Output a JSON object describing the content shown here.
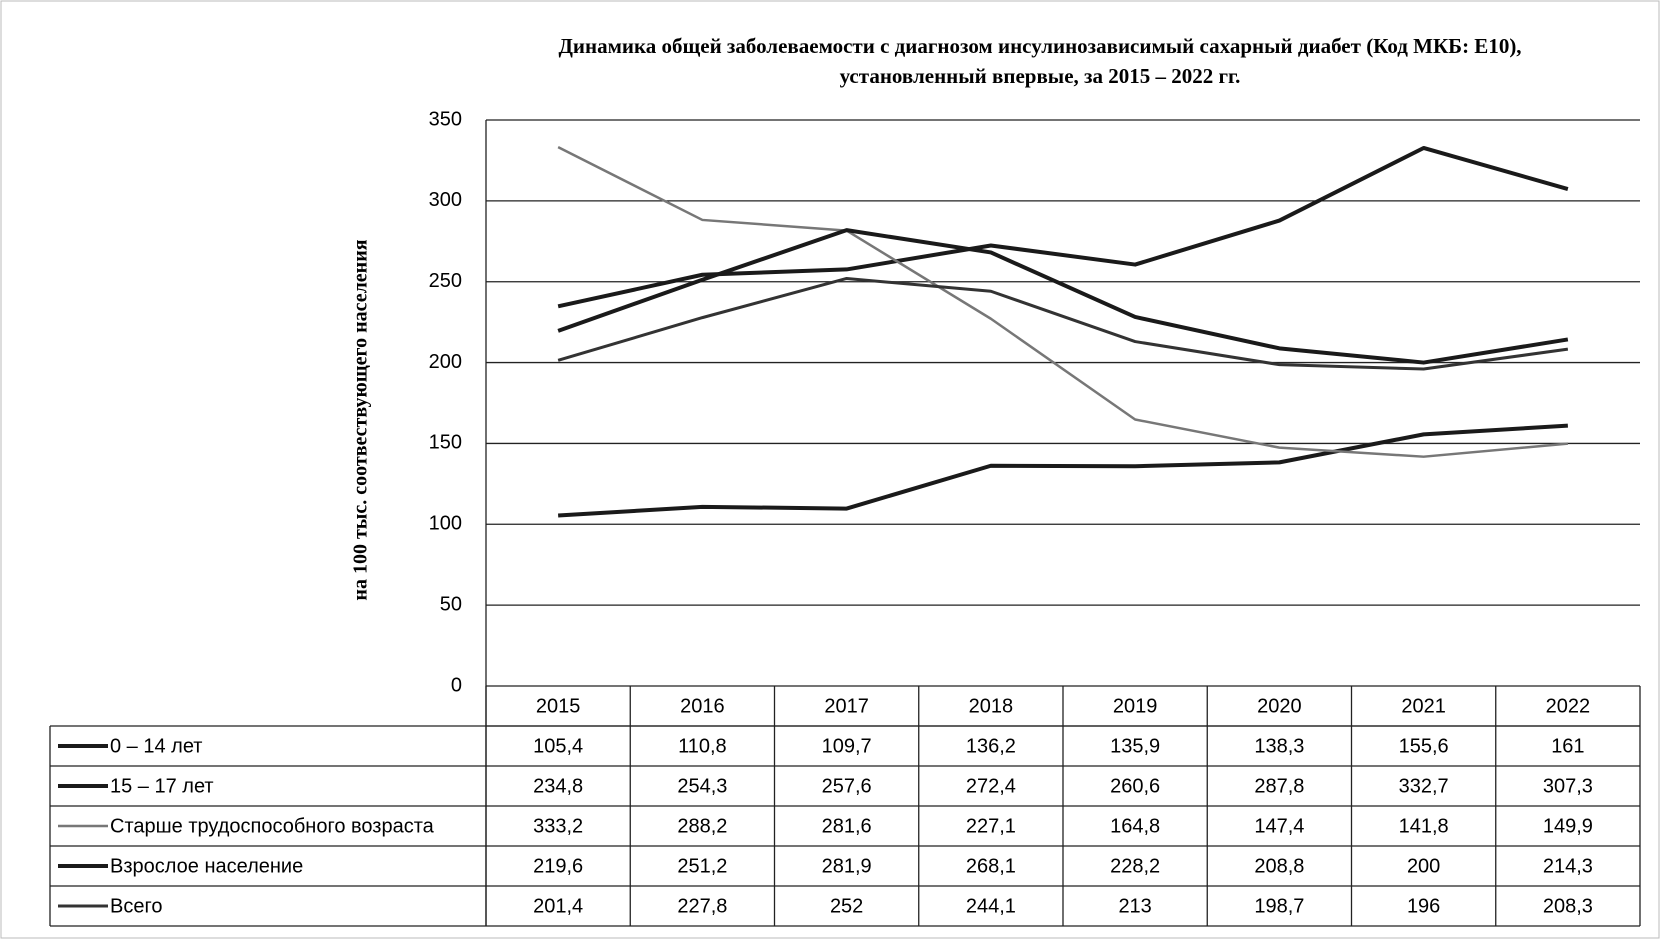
{
  "chart_data": {
    "type": "line",
    "title": [
      "Динамика общей заболеваемости с диагнозом инсулинозависимый сахарный диабет (Код МКБ: Е10),",
      "установленный впервые, за 2015 – 2022 гг."
    ],
    "y_label": "на 100 тыс. соотвествующего населения",
    "categories": [
      "2015",
      "2016",
      "2017",
      "2018",
      "2019",
      "2020",
      "2021",
      "2022"
    ],
    "ylim": [
      0,
      350
    ],
    "yticks": [
      0,
      50,
      100,
      150,
      200,
      250,
      300,
      350
    ],
    "grid": true,
    "series": [
      {
        "name": "0 – 14 лет",
        "color": "#1a1a1a",
        "width": 4,
        "values": [
          105.4,
          110.8,
          109.7,
          136.2,
          135.9,
          138.3,
          155.6,
          161
        ],
        "value_labels": [
          "105,4",
          "110,8",
          "109,7",
          "136,2",
          "135,9",
          "138,3",
          "155,6",
          "161"
        ]
      },
      {
        "name": "15 – 17 лет",
        "color": "#1a1a1a",
        "width": 4,
        "values": [
          234.8,
          254.3,
          257.6,
          272.4,
          260.6,
          287.8,
          332.7,
          307.3
        ],
        "value_labels": [
          "234,8",
          "254,3",
          "257,6",
          "272,4",
          "260,6",
          "287,8",
          "332,7",
          "307,3"
        ]
      },
      {
        "name": "Старше трудоспособного возраста",
        "color": "#777777",
        "width": 2.5,
        "values": [
          333.2,
          288.2,
          281.6,
          227.1,
          164.8,
          147.4,
          141.8,
          149.9
        ],
        "value_labels": [
          "333,2",
          "288,2",
          "281,6",
          "227,1",
          "164,8",
          "147,4",
          "141,8",
          "149,9"
        ]
      },
      {
        "name": "Взрослое население",
        "color": "#1a1a1a",
        "width": 4,
        "values": [
          219.6,
          251.2,
          281.9,
          268.1,
          228.2,
          208.8,
          200,
          214.3
        ],
        "value_labels": [
          "219,6",
          "251,2",
          "281,9",
          "268,1",
          "228,2",
          "208,8",
          "200",
          "214,3"
        ]
      },
      {
        "name": "Всего",
        "color": "#333333",
        "width": 3,
        "values": [
          201.4,
          227.8,
          252,
          244.1,
          213,
          198.7,
          196,
          208.3
        ],
        "value_labels": [
          "201,4",
          "227,8",
          "252",
          "244,1",
          "213",
          "198,7",
          "196",
          "208,3"
        ]
      }
    ]
  }
}
